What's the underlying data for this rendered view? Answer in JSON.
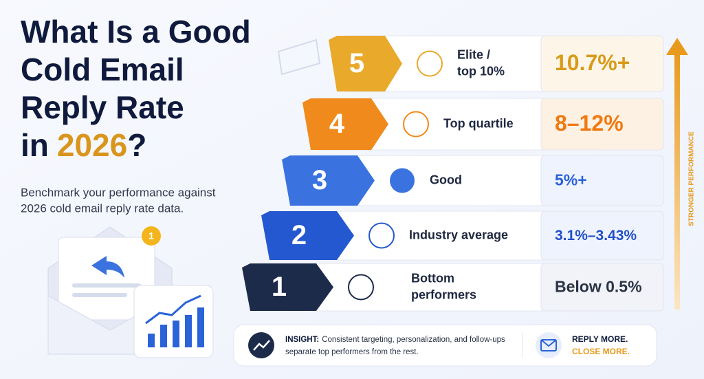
{
  "header": {
    "title_lines": [
      "What Is a Good",
      "Cold Email",
      "Reply Rate"
    ],
    "title_last_prefix": "in",
    "title_highlight": "2026",
    "title_suffix": "?",
    "subtitle_lines": [
      "Benchmark your performance against",
      "2026 cold email reply rate data."
    ]
  },
  "badge": "1",
  "tiers": [
    {
      "rank": "5",
      "label_lines": [
        "Elite /",
        "top 10%"
      ],
      "value": "10.7%+"
    },
    {
      "rank": "4",
      "label_lines": [
        "Top quartile"
      ],
      "value": "8–12%"
    },
    {
      "rank": "3",
      "label_lines": [
        "Good"
      ],
      "value": "5%+"
    },
    {
      "rank": "2",
      "label_lines": [
        "Industry average"
      ],
      "value": "3.1%–3.43%"
    },
    {
      "rank": "1",
      "label_lines": [
        "Bottom",
        "performers"
      ],
      "value": "Below 0.5%"
    }
  ],
  "axis_label": "STRONGER PERFORMANCE",
  "insight": {
    "label": "INSIGHT:",
    "lines": [
      "Consistent targeting, personalization, and follow-ups",
      "separate top performers from the rest."
    ],
    "cta_lines": [
      "REPLY MORE.",
      "CLOSE MORE."
    ]
  }
}
